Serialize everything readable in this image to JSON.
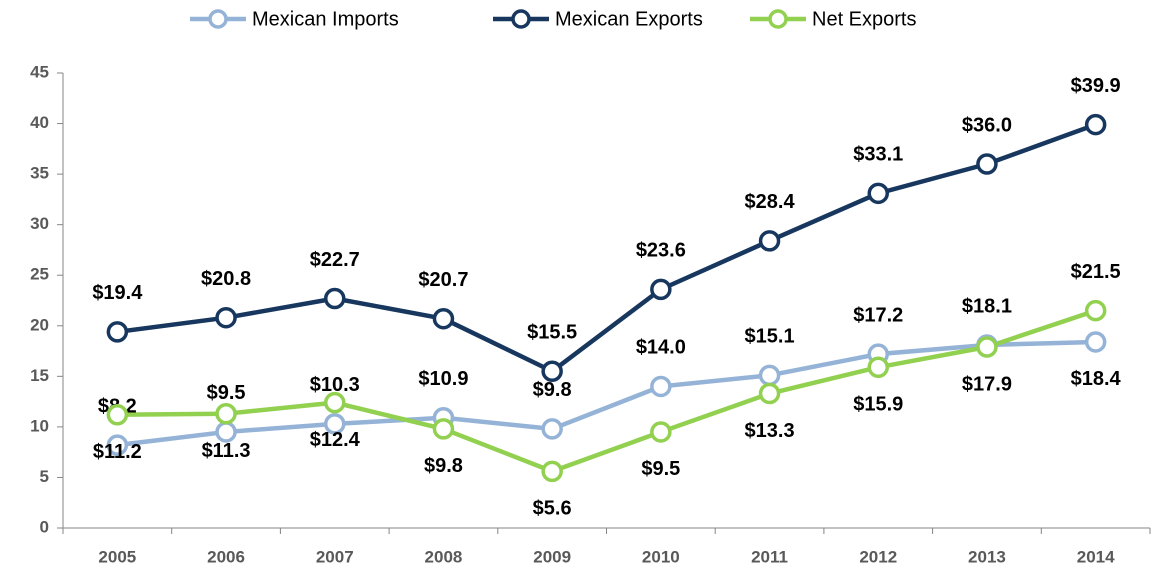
{
  "chart_data": {
    "type": "line",
    "categories": [
      "2005",
      "2006",
      "2007",
      "2008",
      "2009",
      "2010",
      "2011",
      "2012",
      "2013",
      "2014"
    ],
    "series": [
      {
        "name": "Mexican Imports",
        "color": "#95b3d7",
        "values": [
          8.2,
          9.5,
          10.3,
          10.9,
          9.8,
          14.0,
          15.1,
          17.2,
          18.1,
          18.4
        ],
        "value_labels": [
          "$8.2",
          "$9.5",
          "$10.3",
          "$10.9",
          "$9.8",
          "$14.0",
          "$15.1",
          "$17.2",
          "$18.1",
          "$18.4"
        ]
      },
      {
        "name": "Mexican Exports",
        "color": "#17375e",
        "values": [
          19.4,
          20.8,
          22.7,
          20.7,
          15.5,
          23.6,
          28.4,
          33.1,
          36.0,
          39.9
        ],
        "value_labels": [
          "$19.4",
          "$20.8",
          "$22.7",
          "$20.7",
          "$15.5",
          "$23.6",
          "$28.4",
          "$33.1",
          "$36.0",
          "$39.9"
        ]
      },
      {
        "name": "Net Exports",
        "color": "#92d050",
        "values": [
          11.2,
          11.3,
          12.4,
          9.8,
          5.6,
          9.5,
          13.3,
          15.9,
          17.9,
          21.5
        ],
        "value_labels": [
          "$11.2",
          "$11.3",
          "$12.4",
          "$9.8",
          "$5.6",
          "$9.5",
          "$13.3",
          "$15.9",
          "$17.9",
          "$21.5"
        ]
      }
    ],
    "ylim": [
      0,
      45
    ],
    "yticks": [
      0,
      5,
      10,
      15,
      20,
      25,
      30,
      35,
      40,
      45
    ],
    "grid": false,
    "legend": "top"
  }
}
